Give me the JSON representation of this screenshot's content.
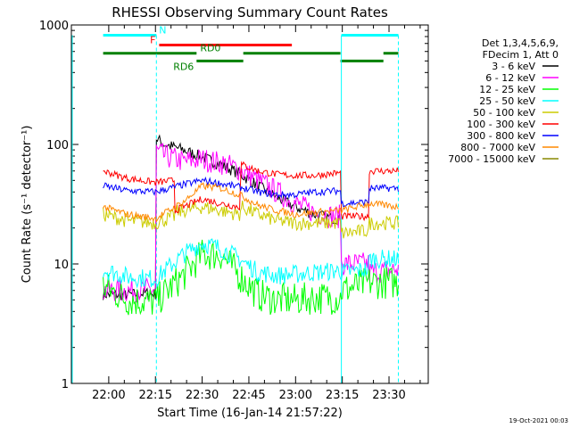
{
  "chart_data": {
    "type": "line",
    "title": "RHESSI Observing Summary Count Rates",
    "xlabel": "Start Time (16-Jan-14 21:57:22)",
    "ylabel": "Count Rate (s⁻¹ detector⁻¹)",
    "y_scale": "log",
    "ylim": [
      1,
      1000
    ],
    "y_ticks": [
      "1",
      "10",
      "100",
      "1000"
    ],
    "x_ticks": [
      "22:00",
      "22:15",
      "22:30",
      "22:45",
      "23:00",
      "23:15",
      "23:30"
    ],
    "footer_date": "19-Oct-2021 00:03",
    "legend_header": [
      "Det 1,3,4,5,6,9,",
      "FDecim 1, Att 0"
    ],
    "legend_position": "right",
    "series": [
      {
        "name": "3 - 6 keV",
        "color": "#000000",
        "points": [
          [
            21.97,
            5.6
          ],
          [
            22.1,
            5.5
          ],
          [
            22.2,
            5.7
          ],
          [
            22.25,
            5.6
          ],
          [
            22.255,
            112
          ],
          [
            22.3,
            100
          ],
          [
            22.4,
            90
          ],
          [
            22.5,
            78
          ],
          [
            22.6,
            68
          ],
          [
            22.7,
            57
          ],
          [
            22.8,
            45
          ],
          [
            22.9,
            36
          ],
          [
            23.0,
            30
          ],
          [
            23.1,
            26
          ],
          [
            23.2,
            24
          ],
          [
            23.24,
            24
          ],
          [
            23.245,
            null
          ],
          [
            23.5,
            null
          ]
        ]
      },
      {
        "name": "6 - 12 keV",
        "color": "#ff00ff",
        "points": [
          [
            21.97,
            6.0
          ],
          [
            22.1,
            6.0
          ],
          [
            22.25,
            6.1
          ],
          [
            22.255,
            88
          ],
          [
            22.3,
            80
          ],
          [
            22.4,
            72
          ],
          [
            22.5,
            75
          ],
          [
            22.6,
            70
          ],
          [
            22.7,
            62
          ],
          [
            22.8,
            50
          ],
          [
            22.9,
            40
          ],
          [
            23.0,
            32
          ],
          [
            23.1,
            27
          ],
          [
            23.2,
            25
          ],
          [
            23.24,
            25
          ],
          [
            23.245,
            10
          ],
          [
            23.3,
            10
          ],
          [
            23.39,
            10
          ],
          [
            23.395,
            8.5
          ],
          [
            23.55,
            9
          ]
        ]
      },
      {
        "name": "12 - 25 keV",
        "color": "#00ff00",
        "points": [
          [
            21.97,
            6.5
          ],
          [
            22.1,
            5.0
          ],
          [
            22.25,
            4.8
          ],
          [
            22.4,
            8
          ],
          [
            22.5,
            12
          ],
          [
            22.6,
            12
          ],
          [
            22.7,
            8
          ],
          [
            22.8,
            5.5
          ],
          [
            22.9,
            5.0
          ],
          [
            23.0,
            5.0
          ],
          [
            23.1,
            5.2
          ],
          [
            23.24,
            5.2
          ],
          [
            23.245,
            6.0
          ],
          [
            23.4,
            7.0
          ],
          [
            23.55,
            7.0
          ]
        ]
      },
      {
        "name": "25 - 50 keV",
        "color": "#00ffff",
        "points": [
          [
            21.97,
            9
          ],
          [
            22.1,
            7.8
          ],
          [
            22.25,
            7.5
          ],
          [
            22.4,
            12
          ],
          [
            22.5,
            15
          ],
          [
            22.6,
            13.5
          ],
          [
            22.7,
            11
          ],
          [
            22.8,
            8.5
          ],
          [
            22.9,
            8
          ],
          [
            23.0,
            8.2
          ],
          [
            23.1,
            8.5
          ],
          [
            23.24,
            8.8
          ],
          [
            23.245,
            8.5
          ],
          [
            23.39,
            9
          ],
          [
            23.395,
            11
          ],
          [
            23.55,
            11
          ]
        ]
      },
      {
        "name": "50 - 100 keV",
        "color": "#cccc00",
        "points": [
          [
            21.97,
            26
          ],
          [
            22.1,
            23
          ],
          [
            22.25,
            22
          ],
          [
            22.35,
            25
          ],
          [
            22.355,
            27
          ],
          [
            22.5,
            30
          ],
          [
            22.6,
            28
          ],
          [
            22.7,
            26
          ],
          [
            22.71,
            30
          ],
          [
            22.8,
            26
          ],
          [
            22.9,
            23
          ],
          [
            23.0,
            22
          ],
          [
            23.1,
            22
          ],
          [
            23.24,
            22
          ],
          [
            23.245,
            18
          ],
          [
            23.39,
            19
          ],
          [
            23.395,
            22
          ],
          [
            23.55,
            22
          ]
        ]
      },
      {
        "name": "100 - 300 keV",
        "color": "#ff0000",
        "points": [
          [
            21.97,
            60
          ],
          [
            22.1,
            52
          ],
          [
            22.25,
            48
          ],
          [
            22.35,
            50
          ],
          [
            22.355,
            28
          ],
          [
            22.5,
            35
          ],
          [
            22.6,
            32
          ],
          [
            22.7,
            30
          ],
          [
            22.71,
            68
          ],
          [
            22.8,
            60
          ],
          [
            22.9,
            56
          ],
          [
            23.0,
            55
          ],
          [
            23.1,
            55
          ],
          [
            23.24,
            58
          ],
          [
            23.245,
            25
          ],
          [
            23.39,
            25
          ],
          [
            23.395,
            60
          ],
          [
            23.55,
            60
          ]
        ]
      },
      {
        "name": "300 - 800 keV",
        "color": "#0000ff",
        "points": [
          [
            21.97,
            45
          ],
          [
            22.1,
            41
          ],
          [
            22.25,
            40
          ],
          [
            22.4,
            46
          ],
          [
            22.5,
            50
          ],
          [
            22.6,
            47
          ],
          [
            22.7,
            44
          ],
          [
            22.8,
            40
          ],
          [
            22.9,
            38
          ],
          [
            23.0,
            38
          ],
          [
            23.1,
            40
          ],
          [
            23.24,
            41
          ],
          [
            23.245,
            32
          ],
          [
            23.39,
            33
          ],
          [
            23.395,
            43
          ],
          [
            23.55,
            43
          ]
        ]
      },
      {
        "name": "800 - 7000 keV",
        "color": "#ff8800",
        "points": [
          [
            21.97,
            30
          ],
          [
            22.1,
            26
          ],
          [
            22.25,
            24
          ],
          [
            22.4,
            33
          ],
          [
            22.5,
            45
          ],
          [
            22.6,
            43
          ],
          [
            22.7,
            38
          ],
          [
            22.8,
            31
          ],
          [
            22.9,
            28
          ],
          [
            23.0,
            26
          ],
          [
            23.1,
            27
          ],
          [
            23.24,
            28
          ],
          [
            23.245,
            28
          ],
          [
            23.4,
            32
          ],
          [
            23.55,
            30
          ]
        ]
      },
      {
        "name": "7000 - 15000 keV",
        "color": "#888800",
        "points": [
          [
            22.45,
            1.0
          ],
          [
            22.7,
            1.0
          ]
        ]
      }
    ],
    "annotations": [
      {
        "label": "N",
        "color": "#00ffff",
        "segments": [
          [
            21.97,
            22.255
          ],
          [
            23.245,
            23.55
          ]
        ],
        "level": 820
      },
      {
        "label": "F",
        "color": "#ff0000",
        "segments": [
          [
            22.27,
            22.98
          ]
        ],
        "level": 680
      },
      {
        "label": "RD0",
        "color": "#008000",
        "segments": [
          [
            21.97,
            22.47
          ],
          [
            22.72,
            23.24
          ],
          [
            23.47,
            23.55
          ]
        ],
        "level": 580
      },
      {
        "label": "RD6",
        "color": "#008000",
        "segments": [
          [
            22.47,
            22.72
          ],
          [
            23.24,
            23.47
          ]
        ],
        "level": 500
      }
    ],
    "vertical_lines": [
      {
        "x": 22.255,
        "style": "dashed",
        "color": "#00ffff"
      },
      {
        "x": 23.245,
        "style": "solid",
        "color": "#00ffff"
      },
      {
        "x": 23.55,
        "style": "dashed",
        "color": "#00ffff"
      }
    ]
  }
}
